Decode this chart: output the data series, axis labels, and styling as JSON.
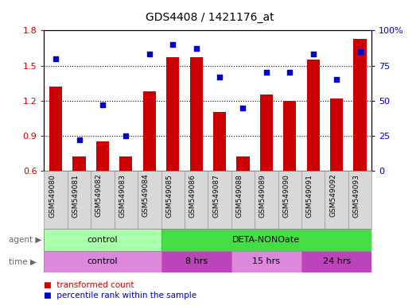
{
  "title": "GDS4408 / 1421176_at",
  "samples": [
    "GSM549080",
    "GSM549081",
    "GSM549082",
    "GSM549083",
    "GSM549084",
    "GSM549085",
    "GSM549086",
    "GSM549087",
    "GSM549088",
    "GSM549089",
    "GSM549090",
    "GSM549091",
    "GSM549092",
    "GSM549093"
  ],
  "transformed_count": [
    1.32,
    0.72,
    0.85,
    0.72,
    1.28,
    1.57,
    1.57,
    1.1,
    0.72,
    1.25,
    1.2,
    1.55,
    1.22,
    1.73
  ],
  "percentile_rank": [
    80,
    22,
    47,
    25,
    83,
    90,
    87,
    67,
    45,
    70,
    70,
    83,
    65,
    85
  ],
  "ylim_left": [
    0.6,
    1.8
  ],
  "ylim_right": [
    0,
    100
  ],
  "yticks_left": [
    0.6,
    0.9,
    1.2,
    1.5,
    1.8
  ],
  "yticks_right": [
    0,
    25,
    50,
    75,
    100
  ],
  "ytick_labels_right": [
    "0",
    "25",
    "50",
    "75",
    "100%"
  ],
  "bar_color": "#cc0000",
  "dot_color": "#0000cc",
  "bar_width": 0.55,
  "agent_groups": [
    {
      "label": "control",
      "start": 0,
      "end": 4,
      "color": "#aaffaa"
    },
    {
      "label": "DETA-NONOate",
      "start": 5,
      "end": 13,
      "color": "#44dd44"
    }
  ],
  "time_groups": [
    {
      "label": "control",
      "start": 0,
      "end": 4,
      "color": "#dd88dd"
    },
    {
      "label": "8 hrs",
      "start": 5,
      "end": 7,
      "color": "#bb44bb"
    },
    {
      "label": "15 hrs",
      "start": 8,
      "end": 10,
      "color": "#dd88dd"
    },
    {
      "label": "24 hrs",
      "start": 11,
      "end": 13,
      "color": "#bb44bb"
    }
  ],
  "legend_bar_label": "transformed count",
  "legend_dot_label": "percentile rank within the sample",
  "background_color": "#ffffff",
  "tick_label_color_left": "#cc0000",
  "tick_label_color_right": "#0000cc",
  "agent_label": "agent",
  "time_label": "time",
  "xlabel_grey": "#cccccc",
  "row_label_color": "#666666"
}
